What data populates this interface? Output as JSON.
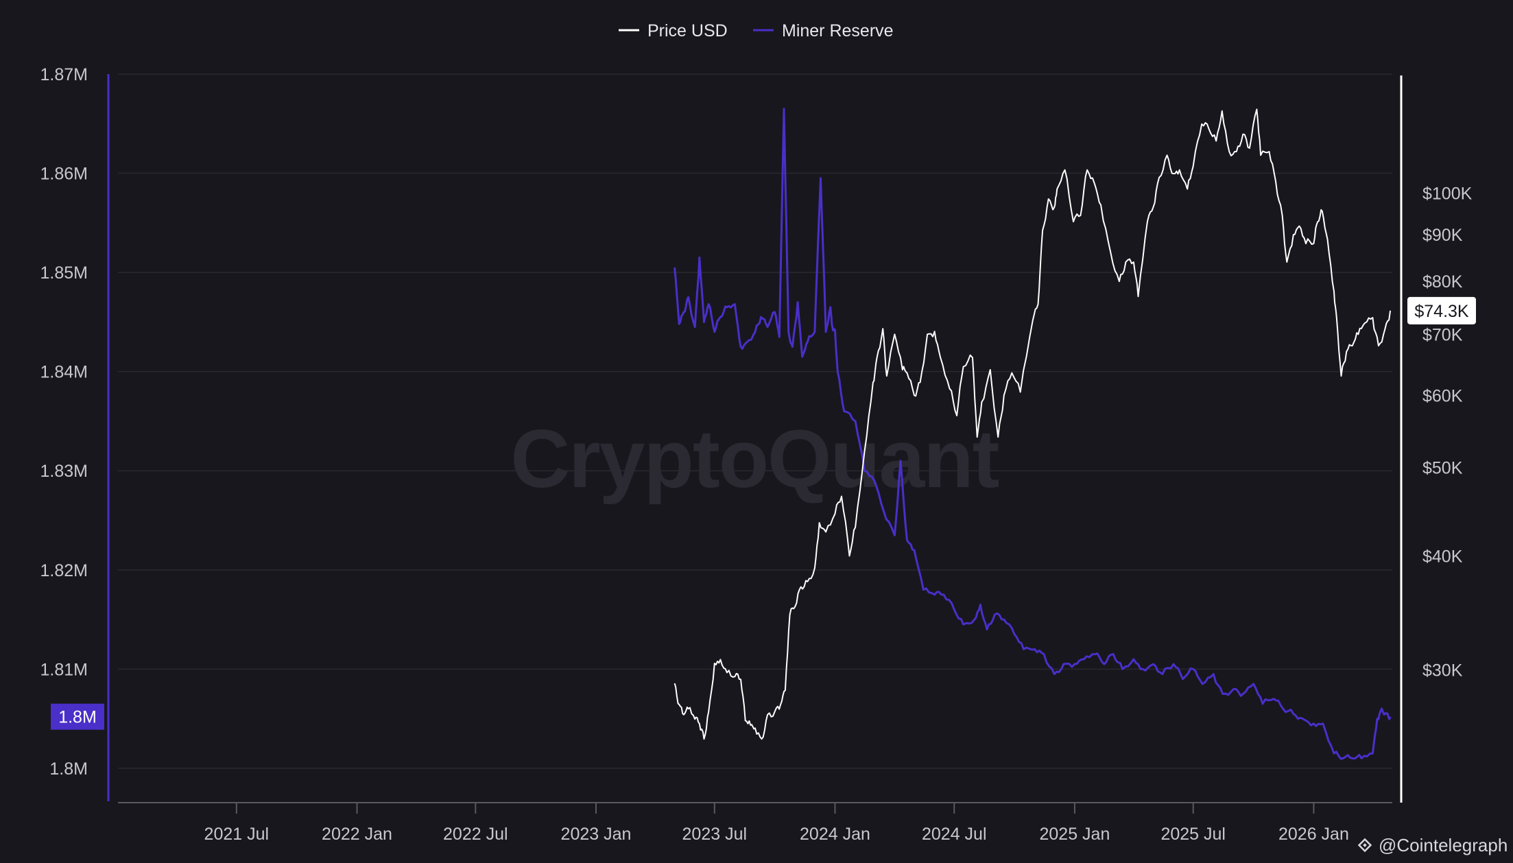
{
  "chart_data": {
    "type": "line",
    "watermark": "CryptoQuant",
    "credit": "@Cointelegraph",
    "legend": {
      "placement": "top-center",
      "items": [
        {
          "label": "Price USD",
          "color": "#ffffff"
        },
        {
          "label": "Miner Reserve",
          "color": "#4a2fc9"
        }
      ]
    },
    "x_axis": {
      "range": [
        "2021-01-01",
        "2026-05-01"
      ],
      "ticks": [
        {
          "date": "2021-07-01",
          "label": "2021 Jul"
        },
        {
          "date": "2022-01-01",
          "label": "2022 Jan"
        },
        {
          "date": "2022-07-01",
          "label": "2022 Jul"
        },
        {
          "date": "2023-01-01",
          "label": "2023 Jan"
        },
        {
          "date": "2023-07-01",
          "label": "2023 Jul"
        },
        {
          "date": "2024-01-01",
          "label": "2024 Jan"
        },
        {
          "date": "2024-07-01",
          "label": "2024 Jul"
        },
        {
          "date": "2025-01-01",
          "label": "2025 Jan"
        },
        {
          "date": "2025-07-01",
          "label": "2025 Jul"
        },
        {
          "date": "2026-01-01",
          "label": "2026 Jan"
        }
      ]
    },
    "y_left": {
      "name": "Miner Reserve",
      "range": [
        1799300,
        1870000
      ],
      "ticks": [
        {
          "value": 1870000,
          "label": "1.87M"
        },
        {
          "value": 1860000,
          "label": "1.86M"
        },
        {
          "value": 1850000,
          "label": "1.85M"
        },
        {
          "value": 1840000,
          "label": "1.84M"
        },
        {
          "value": 1830000,
          "label": "1.83M"
        },
        {
          "value": 1820000,
          "label": "1.82M"
        },
        {
          "value": 1810000,
          "label": "1.81M"
        },
        {
          "value": 1800000,
          "label": "1.8M"
        }
      ],
      "current_label": "1.8M",
      "current_value": 1805200,
      "current_color": "#4a2fc9"
    },
    "y_right": {
      "name": "Price USD",
      "scale": "log",
      "range": [
        23000,
        135000
      ],
      "ticks": [
        {
          "value": 100000,
          "label": "$100K"
        },
        {
          "value": 90000,
          "label": "$90K"
        },
        {
          "value": 80000,
          "label": "$80K"
        },
        {
          "value": 70000,
          "label": "$70K"
        },
        {
          "value": 60000,
          "label": "$60K"
        },
        {
          "value": 50000,
          "label": "$50K"
        },
        {
          "value": 40000,
          "label": "$40K"
        },
        {
          "value": 30000,
          "label": "$30K"
        }
      ],
      "current_label": "$74.3K",
      "current_value": 74300
    },
    "grid": true,
    "series": [
      {
        "name": "Miner Reserve",
        "axis": "left",
        "color": "#4a2fc9",
        "x": [
          "2023-05-01",
          "2023-05-08",
          "2023-05-15",
          "2023-05-22",
          "2023-06-01",
          "2023-06-08",
          "2023-06-15",
          "2023-06-22",
          "2023-07-01",
          "2023-07-10",
          "2023-07-20",
          "2023-08-01",
          "2023-08-10",
          "2023-08-20",
          "2023-09-01",
          "2023-09-10",
          "2023-09-20",
          "2023-10-01",
          "2023-10-08",
          "2023-10-15",
          "2023-10-22",
          "2023-10-28",
          "2023-11-05",
          "2023-11-12",
          "2023-11-20",
          "2023-12-01",
          "2023-12-10",
          "2023-12-18",
          "2023-12-25",
          "2023-12-28",
          "2024-01-01",
          "2024-01-05",
          "2024-01-15",
          "2024-02-01",
          "2024-02-15",
          "2024-03-01",
          "2024-03-15",
          "2024-04-01",
          "2024-04-10",
          "2024-04-20",
          "2024-05-01",
          "2024-05-15",
          "2024-06-01",
          "2024-06-15",
          "2024-07-01",
          "2024-07-15",
          "2024-08-01",
          "2024-08-10",
          "2024-08-20",
          "2024-09-01",
          "2024-09-15",
          "2024-10-01",
          "2024-10-15",
          "2024-11-01",
          "2024-11-15",
          "2024-12-01",
          "2024-12-15",
          "2025-01-01",
          "2025-01-15",
          "2025-02-01",
          "2025-02-15",
          "2025-03-01",
          "2025-03-15",
          "2025-04-01",
          "2025-04-15",
          "2025-05-01",
          "2025-05-15",
          "2025-06-01",
          "2025-06-15",
          "2025-07-01",
          "2025-07-15",
          "2025-08-01",
          "2025-08-15",
          "2025-09-01",
          "2025-09-15",
          "2025-10-01",
          "2025-10-15",
          "2025-11-01",
          "2025-11-15",
          "2025-12-01",
          "2025-12-15",
          "2026-01-01",
          "2026-01-15",
          "2026-02-01",
          "2026-02-15",
          "2026-03-01",
          "2026-03-15",
          "2026-04-01",
          "2026-04-08",
          "2026-04-15",
          "2026-04-22",
          "2026-04-28"
        ],
        "y": [
          1850500,
          1844800,
          1846000,
          1847500,
          1844500,
          1851500,
          1845000,
          1846800,
          1844000,
          1845500,
          1846500,
          1846800,
          1842500,
          1843000,
          1844000,
          1845500,
          1844500,
          1846000,
          1843500,
          1866500,
          1844000,
          1842500,
          1847000,
          1841500,
          1843000,
          1844000,
          1859500,
          1844000,
          1846500,
          1844500,
          1844200,
          1840000,
          1836000,
          1835000,
          1830000,
          1829000,
          1826000,
          1823500,
          1831000,
          1823000,
          1822000,
          1818000,
          1817500,
          1817500,
          1816000,
          1814500,
          1815000,
          1816500,
          1814000,
          1815500,
          1815000,
          1813500,
          1812000,
          1812000,
          1811500,
          1809500,
          1810500,
          1810500,
          1811000,
          1811500,
          1810500,
          1811500,
          1810000,
          1811000,
          1810000,
          1810500,
          1809500,
          1810500,
          1809000,
          1810000,
          1808500,
          1809500,
          1807500,
          1808000,
          1807500,
          1808500,
          1806500,
          1807000,
          1806000,
          1805500,
          1805000,
          1804500,
          1804500,
          1801500,
          1801000,
          1801000,
          1801000,
          1801500,
          1805000,
          1806000,
          1805500,
          1805200
        ]
      },
      {
        "name": "Price USD",
        "axis": "right",
        "color": "#ffffff",
        "x": [
          "2023-05-01",
          "2023-05-08",
          "2023-05-15",
          "2023-05-22",
          "2023-06-01",
          "2023-06-08",
          "2023-06-15",
          "2023-06-22",
          "2023-07-01",
          "2023-07-10",
          "2023-07-20",
          "2023-08-01",
          "2023-08-10",
          "2023-08-17",
          "2023-08-25",
          "2023-09-01",
          "2023-09-11",
          "2023-09-20",
          "2023-10-01",
          "2023-10-10",
          "2023-10-17",
          "2023-10-24",
          "2023-11-01",
          "2023-11-10",
          "2023-11-20",
          "2023-12-01",
          "2023-12-08",
          "2023-12-18",
          "2024-01-01",
          "2024-01-11",
          "2024-01-23",
          "2024-02-01",
          "2024-02-15",
          "2024-02-28",
          "2024-03-05",
          "2024-03-14",
          "2024-03-20",
          "2024-04-01",
          "2024-04-13",
          "2024-04-20",
          "2024-05-01",
          "2024-05-10",
          "2024-05-21",
          "2024-06-01",
          "2024-06-10",
          "2024-06-24",
          "2024-07-05",
          "2024-07-15",
          "2024-07-29",
          "2024-08-05",
          "2024-08-12",
          "2024-08-25",
          "2024-09-06",
          "2024-09-15",
          "2024-09-27",
          "2024-10-10",
          "2024-10-29",
          "2024-11-06",
          "2024-11-13",
          "2024-11-22",
          "2024-12-01",
          "2024-12-05",
          "2024-12-17",
          "2024-12-30",
          "2025-01-10",
          "2025-01-20",
          "2025-01-31",
          "2025-02-10",
          "2025-02-25",
          "2025-03-10",
          "2025-03-20",
          "2025-04-01",
          "2025-04-08",
          "2025-04-22",
          "2025-05-01",
          "2025-05-10",
          "2025-05-22",
          "2025-06-01",
          "2025-06-10",
          "2025-06-22",
          "2025-07-01",
          "2025-07-14",
          "2025-07-25",
          "2025-08-05",
          "2025-08-14",
          "2025-08-25",
          "2025-09-05",
          "2025-09-15",
          "2025-09-25",
          "2025-10-06",
          "2025-10-12",
          "2025-10-25",
          "2025-11-04",
          "2025-11-14",
          "2025-11-21",
          "2025-12-01",
          "2025-12-10",
          "2025-12-20",
          "2026-01-01",
          "2026-01-07",
          "2026-01-14",
          "2026-01-22",
          "2026-02-01",
          "2026-02-05",
          "2026-02-12",
          "2026-02-20",
          "2026-03-01",
          "2026-03-10",
          "2026-03-20",
          "2026-04-01",
          "2026-04-10",
          "2026-04-20",
          "2026-04-28"
        ],
        "y": [
          29000,
          27500,
          26800,
          27200,
          26500,
          26200,
          25200,
          27000,
          30500,
          30800,
          29800,
          29500,
          29300,
          26400,
          26100,
          25900,
          25200,
          26800,
          27000,
          27500,
          28500,
          34500,
          35200,
          37000,
          37500,
          38800,
          43500,
          42500,
          44500,
          46500,
          40000,
          43000,
          52000,
          62000,
          66000,
          71000,
          63000,
          70000,
          64000,
          63500,
          60000,
          62000,
          70000,
          70500,
          66000,
          61000,
          57000,
          64500,
          66000,
          54000,
          59000,
          64000,
          54000,
          60000,
          63500,
          60500,
          72500,
          75500,
          91000,
          98500,
          96500,
          101000,
          106000,
          93000,
          94500,
          106000,
          102500,
          97000,
          86000,
          80000,
          84000,
          84000,
          77000,
          93000,
          96500,
          104000,
          110000,
          105000,
          106000,
          101000,
          107000,
          119000,
          117500,
          114000,
          123000,
          111000,
          111000,
          116000,
          112000,
          123500,
          110000,
          111000,
          103000,
          94500,
          84000,
          90000,
          92000,
          88000,
          88000,
          93000,
          95500,
          89000,
          78000,
          73000,
          63000,
          67000,
          68000,
          70000,
          72000,
          73000,
          68000,
          71000,
          74300
        ]
      }
    ]
  }
}
